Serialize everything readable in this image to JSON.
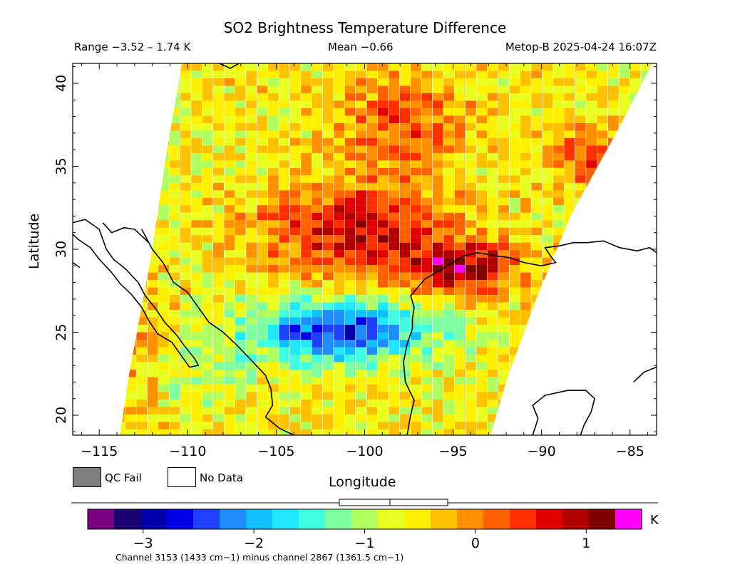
{
  "header": {
    "title": "SO2 Brightness Temperature Difference",
    "range": "Range −3.52 – 1.74 K",
    "mean": "Mean −0.66",
    "satellite": "Metop-B 2025-04-24 16:07Z"
  },
  "legend": {
    "qc_fail": "QC Fail",
    "no_data": "No Data",
    "qc_fail_color": "#7f7f7f",
    "no_data_color": "#ffffff"
  },
  "colorbar": {
    "unit": "K",
    "ticks": [
      "−3",
      "−2",
      "−1",
      "0",
      "1"
    ],
    "tick_values": [
      -3,
      -2,
      -1,
      0,
      1
    ],
    "range": [
      -3.5,
      1.5
    ],
    "colors": [
      "#7a0080",
      "#1a0070",
      "#0000a8",
      "#0000e8",
      "#1e40ff",
      "#1e8cff",
      "#10c0ff",
      "#20e8ff",
      "#40ffe0",
      "#80ffa0",
      "#b0ff60",
      "#e8ff20",
      "#fff000",
      "#ffc000",
      "#ff9000",
      "#ff6000",
      "#ff3000",
      "#e00000",
      "#b00000",
      "#800000",
      "#ff00ff"
    ],
    "footnote": "Channel 3153 (1433 cm−1) minus channel 2867 (1361.5 cm−1)"
  },
  "chart_data": {
    "type": "heatmap",
    "title": "SO2 Brightness Temperature Difference",
    "xlabel": "Longitude",
    "ylabel": "Latitude",
    "xlim": [
      -116.5,
      -83.5
    ],
    "ylim": [
      18.8,
      41.2
    ],
    "xticks": [
      -115,
      -110,
      -105,
      -100,
      -95,
      -90,
      -85
    ],
    "yticks": [
      20,
      25,
      30,
      35,
      40
    ],
    "xtick_labels": [
      "−115",
      "−110",
      "−105",
      "−100",
      "−95",
      "−90",
      "−85"
    ],
    "ytick_labels": [
      "20",
      "25",
      "30",
      "35",
      "40"
    ],
    "value_range": [
      -3.52,
      1.74
    ],
    "mean": -0.66,
    "units": "K",
    "features": [
      {
        "name": "positive anomaly",
        "lon": -100.5,
        "lat": 31.2,
        "value": 0.8
      },
      {
        "name": "positive anomaly",
        "lon": -94.5,
        "lat": 28.8,
        "value": 0.9
      },
      {
        "name": "negative anomaly",
        "lon": -101.5,
        "lat": 25.0,
        "value": -2.6
      }
    ]
  }
}
